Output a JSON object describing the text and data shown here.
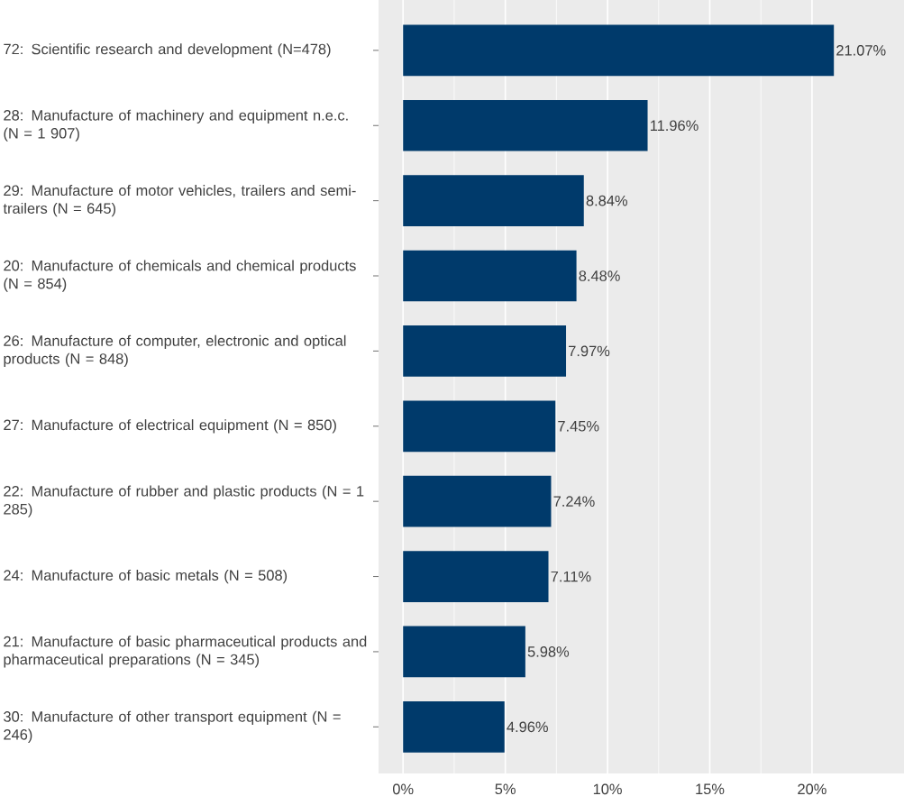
{
  "chart_data": {
    "type": "bar",
    "orientation": "horizontal",
    "categories": [
      "72: Scientific research and development (N=478)",
      "28: Manufacture of machinery and equipment n.e.c. (N = 1 907)",
      "29: Manufacture of motor vehicles, trailers and semi-trailers (N = 645)",
      "20: Manufacture of chemicals and chemical products (N = 854)",
      "26: Manufacture of computer, electronic and optical products (N = 848)",
      "27: Manufacture of electrical equipment (N = 850)",
      "22: Manufacture of rubber and plastic products (N = 1 285)",
      "24: Manufacture of basic metals (N = 508)",
      "21: Manufacture of basic pharmaceutical products and pharmaceutical preparations (N = 345)",
      "30: Manufacture of other transport equipment (N = 246)"
    ],
    "values": [
      21.07,
      11.96,
      8.84,
      8.48,
      7.97,
      7.45,
      7.24,
      7.11,
      5.98,
      4.96
    ],
    "value_labels": [
      "21.07%",
      "11.96%",
      "8.84%",
      "8.48%",
      "7.97%",
      "7.45%",
      "7.24%",
      "7.11%",
      "5.98%",
      "4.96%"
    ],
    "color": "#003a6b",
    "xlim": [
      -1.2,
      24.5
    ],
    "xticks": [
      {
        "value": 0,
        "label": "0%"
      },
      {
        "value": 5,
        "label": "5%"
      },
      {
        "value": 10,
        "label": "10%"
      },
      {
        "value": 15,
        "label": "15%"
      },
      {
        "value": 20,
        "label": "20%"
      }
    ],
    "grid": "x"
  }
}
